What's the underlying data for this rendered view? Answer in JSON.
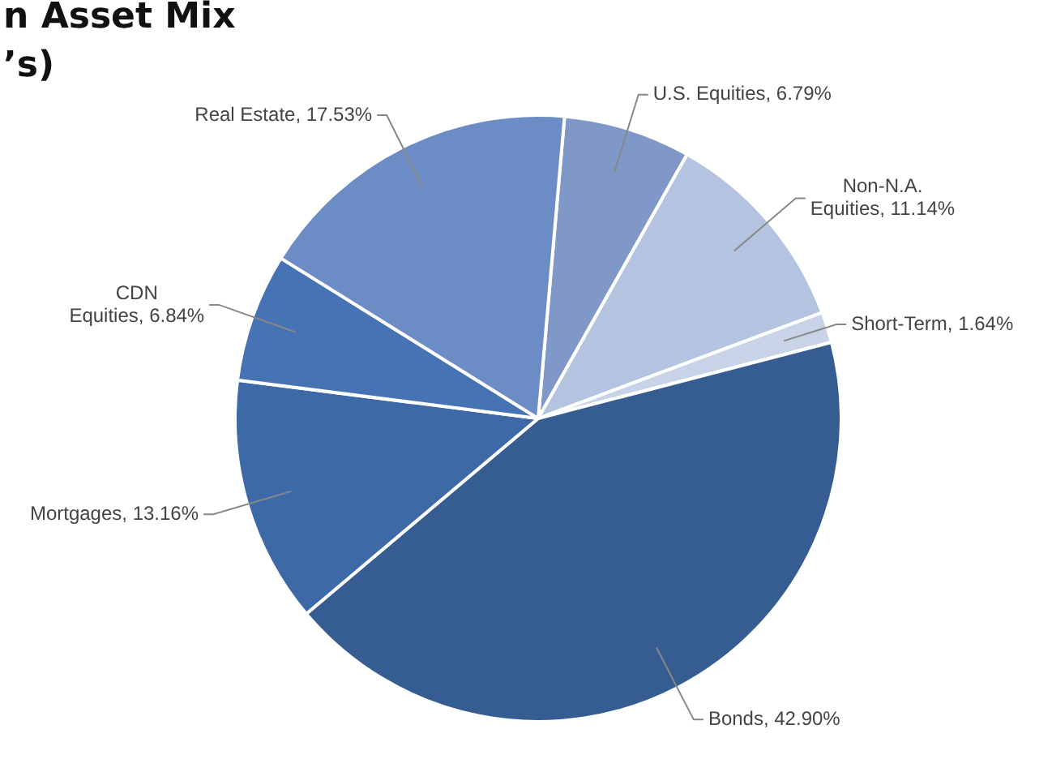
{
  "chart_data": {
    "type": "pie",
    "title": "n Asset Mix\n’s)",
    "categories": [
      "U.S. Equities",
      "Non-N.A. Equities",
      "Short-Term",
      "Bonds",
      "Mortgages",
      "CDN Equities",
      "Real Estate"
    ],
    "values": [
      6.79,
      11.14,
      1.64,
      42.9,
      13.16,
      6.84,
      17.53
    ],
    "value_labels": [
      "6.79%",
      "11.14%",
      "1.64%",
      "42.90%",
      "13.16%",
      "6.84%",
      "17.53%"
    ],
    "colors": [
      "#7f98c8",
      "#b4c3df",
      "#c9d3e8",
      "#365d92",
      "#3d6aa6",
      "#4673b3",
      "#6b8cc4"
    ],
    "legend": false
  }
}
